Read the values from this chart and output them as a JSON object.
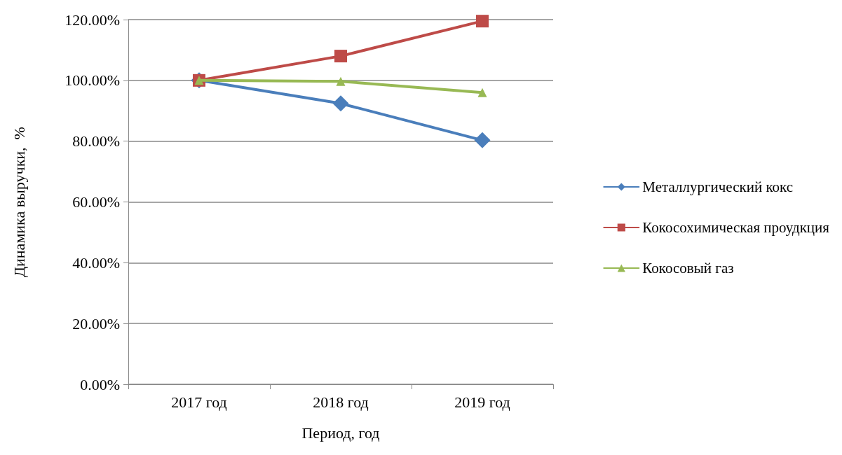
{
  "chart_data": {
    "type": "line",
    "xlabel": "Период, год",
    "ylabel": "Динамика выручки,  %",
    "categories": [
      "2017 год",
      "2018 год",
      "2019 год"
    ],
    "series": [
      {
        "name": "Металлургический кокс",
        "color": "#4a7ebb",
        "marker": "diamond",
        "values": [
          100,
          92.4,
          80.3
        ]
      },
      {
        "name": "Кокосохимическая проудкция",
        "color": "#be4b48",
        "marker": "square",
        "values": [
          100,
          108,
          119.5
        ]
      },
      {
        "name": "Кокосовый газ",
        "color": "#98b954",
        "marker": "triangle",
        "values": [
          100,
          99.7,
          96
        ]
      }
    ],
    "ylim": [
      0,
      120
    ],
    "yticks": [
      {
        "value": 0,
        "label": "0.00%"
      },
      {
        "value": 20,
        "label": "20.00%"
      },
      {
        "value": 40,
        "label": "40.00%"
      },
      {
        "value": 60,
        "label": "60.00%"
      },
      {
        "value": 80,
        "label": "80.00%"
      },
      {
        "value": 100,
        "label": "100.00%"
      },
      {
        "value": 120,
        "label": "120.00%"
      }
    ],
    "grid": "y",
    "legend": "right",
    "line_style": "solid"
  }
}
